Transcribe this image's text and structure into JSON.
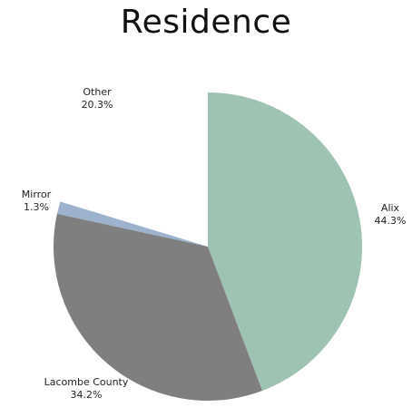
{
  "chart_data": {
    "type": "pie",
    "title": "Residence",
    "slices": [
      {
        "label": "Alix",
        "value": 44.3,
        "value_label": "44.3%",
        "color": "#9fc3b3"
      },
      {
        "label": "Lacombe County",
        "value": 34.2,
        "value_label": "34.2%",
        "color": "#7f7f7f"
      },
      {
        "label": "Mirror",
        "value": 1.3,
        "value_label": "1.3%",
        "color": "#9cb2cd"
      },
      {
        "label": "Other",
        "value": 20.3,
        "value_label": "20.3%",
        "color": "#ffffff"
      }
    ],
    "start_angle": "12 o'clock",
    "direction": "clockwise",
    "legend": "none"
  }
}
